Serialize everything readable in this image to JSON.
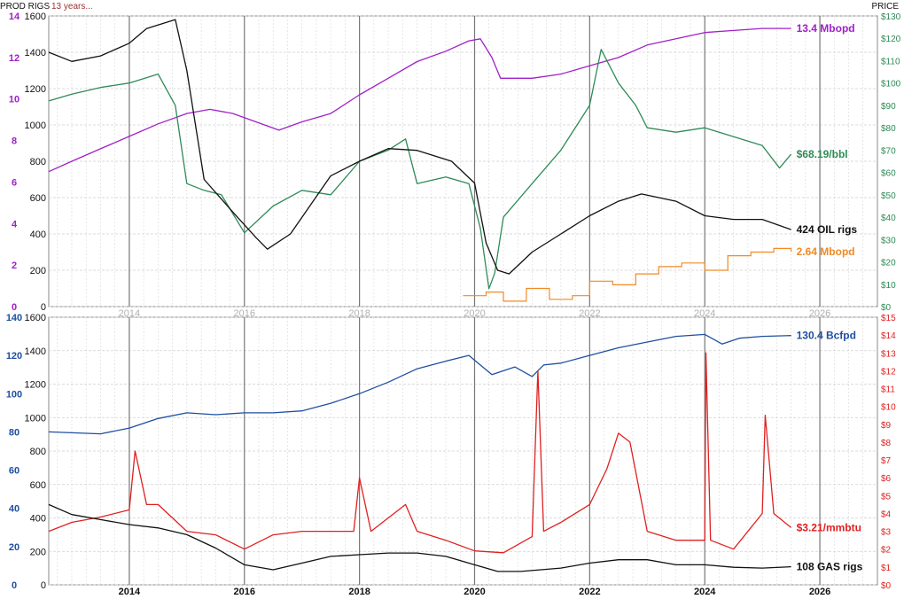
{
  "header": {
    "left_label": "PROD RIGS",
    "note": "13 years...",
    "right_label": "PRICE"
  },
  "chart_data": [
    {
      "type": "line",
      "panel": "oil",
      "x_ticks": [
        "2014",
        "2016",
        "2018",
        "2020",
        "2022",
        "2024",
        "2026"
      ],
      "xlim": [
        2012.6,
        2027.0
      ],
      "y_axes": {
        "rigs": {
          "ticks": [
            "0",
            "200",
            "400",
            "600",
            "800",
            "1000",
            "1200",
            "1400",
            "1600"
          ],
          "ylim": [
            0,
            1600
          ]
        },
        "prod": {
          "ticks": [
            "0",
            "2",
            "4",
            "6",
            "8",
            "10",
            "12",
            "14"
          ],
          "ylim": [
            0,
            14
          ],
          "color": "#a020c8"
        },
        "price": {
          "ticks": [
            "$0",
            "$10",
            "$20",
            "$30",
            "$40",
            "$50",
            "$60",
            "$70",
            "$80",
            "$90",
            "$100",
            "$110",
            "$120",
            "$130"
          ],
          "ylim": [
            0,
            130
          ],
          "color": "#2e8b57"
        }
      },
      "series": [
        {
          "key": "prod",
          "color": "#a020c8",
          "label": "13.4 Mbopd",
          "x": [
            2012.6,
            2013.0,
            2013.5,
            2014.0,
            2014.5,
            2015.0,
            2015.4,
            2015.8,
            2016.2,
            2016.6,
            2017.0,
            2017.5,
            2018.0,
            2018.5,
            2019.0,
            2019.5,
            2019.9,
            2020.1,
            2020.3,
            2020.45,
            2020.7,
            2021.0,
            2021.5,
            2022.0,
            2022.5,
            2023.0,
            2023.5,
            2024.0,
            2024.5,
            2025.0,
            2025.5
          ],
          "y": [
            6.5,
            7.0,
            7.6,
            8.2,
            8.8,
            9.3,
            9.5,
            9.3,
            8.9,
            8.5,
            8.9,
            9.3,
            10.2,
            11.0,
            11.8,
            12.3,
            12.8,
            12.9,
            12.0,
            11.0,
            11.0,
            11.0,
            11.2,
            11.6,
            12.0,
            12.6,
            12.9,
            13.2,
            13.3,
            13.4,
            13.4
          ]
        },
        {
          "key": "price",
          "color": "#2e8b57",
          "label": "$68.19/bbl",
          "x": [
            2012.6,
            2013.0,
            2013.5,
            2014.0,
            2014.5,
            2014.8,
            2015.0,
            2015.3,
            2015.6,
            2016.0,
            2016.5,
            2017.0,
            2017.5,
            2018.0,
            2018.5,
            2018.8,
            2019.0,
            2019.5,
            2019.9,
            2020.1,
            2020.25,
            2020.35,
            2020.5,
            2021.0,
            2021.5,
            2022.0,
            2022.2,
            2022.5,
            2022.8,
            2023.0,
            2023.5,
            2024.0,
            2024.5,
            2025.0,
            2025.3,
            2025.5
          ],
          "y": [
            92,
            95,
            98,
            100,
            104,
            90,
            55,
            52,
            50,
            33,
            45,
            52,
            50,
            65,
            70,
            75,
            55,
            58,
            55,
            35,
            8,
            15,
            40,
            55,
            70,
            90,
            115,
            100,
            90,
            80,
            78,
            80,
            76,
            72,
            62,
            68.19
          ]
        },
        {
          "key": "rigs",
          "color": "#111111",
          "label": "424 OIL rigs",
          "x": [
            2012.6,
            2013.0,
            2013.5,
            2014.0,
            2014.3,
            2014.8,
            2015.0,
            2015.3,
            2015.8,
            2016.2,
            2016.4,
            2016.8,
            2017.5,
            2018.0,
            2018.5,
            2019.0,
            2019.6,
            2020.0,
            2020.2,
            2020.4,
            2020.6,
            2021.0,
            2021.5,
            2022.0,
            2022.5,
            2022.9,
            2023.5,
            2024.0,
            2024.5,
            2025.0,
            2025.5
          ],
          "y": [
            1400,
            1350,
            1380,
            1450,
            1530,
            1580,
            1300,
            700,
            520,
            380,
            316,
            400,
            720,
            800,
            870,
            860,
            800,
            680,
            350,
            200,
            180,
            300,
            400,
            500,
            580,
            620,
            580,
            500,
            480,
            480,
            424
          ]
        },
        {
          "key": "rigs",
          "color": "#f08a24",
          "label": "2.64 Mbopd",
          "x": [
            2019.8,
            2020.2,
            2020.5,
            2020.9,
            2021.3,
            2021.7,
            2022.0,
            2022.4,
            2022.8,
            2023.2,
            2023.6,
            2024.0,
            2024.4,
            2024.8,
            2025.2,
            2025.5
          ],
          "y": [
            60,
            80,
            30,
            100,
            40,
            60,
            140,
            120,
            180,
            220,
            240,
            200,
            280,
            300,
            320,
            302
          ]
        }
      ]
    },
    {
      "type": "line",
      "panel": "gas",
      "x_ticks": [
        "2014",
        "2016",
        "2018",
        "2020",
        "2022",
        "2024",
        "2026"
      ],
      "xlim": [
        2012.6,
        2027.0
      ],
      "y_axes": {
        "rigs": {
          "ticks": [
            "0",
            "200",
            "400",
            "600",
            "800",
            "1000",
            "1200",
            "1400",
            "1600"
          ],
          "ylim": [
            0,
            1600
          ]
        },
        "prod": {
          "ticks": [
            "0",
            "20",
            "40",
            "60",
            "80",
            "100",
            "120",
            "140"
          ],
          "ylim": [
            0,
            140
          ],
          "color": "#1f4fa0"
        },
        "price": {
          "ticks": [
            "$0",
            "$1",
            "$2",
            "$3",
            "$4",
            "$5",
            "$6",
            "$7",
            "$8",
            "$9",
            "$10",
            "$11",
            "$12",
            "$13",
            "$14",
            "$15"
          ],
          "ylim": [
            0,
            15
          ],
          "color": "#e02020"
        }
      },
      "series": [
        {
          "key": "prod",
          "color": "#1f4fa0",
          "label": "130.4 Bcfpd",
          "x": [
            2012.6,
            2013.5,
            2014.0,
            2014.5,
            2015.0,
            2015.5,
            2016.0,
            2016.5,
            2017.0,
            2017.5,
            2018.0,
            2018.5,
            2019.0,
            2019.5,
            2019.9,
            2020.3,
            2020.7,
            2021.0,
            2021.2,
            2021.5,
            2022.0,
            2022.5,
            2023.0,
            2023.5,
            2024.0,
            2024.3,
            2024.6,
            2025.0,
            2025.5
          ],
          "y": [
            80,
            79,
            82,
            87,
            90,
            89,
            90,
            90,
            91,
            95,
            100,
            106,
            113,
            117,
            120,
            110,
            114,
            109,
            115,
            116,
            120,
            124,
            127,
            130,
            131,
            126,
            129,
            130,
            130.4
          ]
        },
        {
          "key": "price",
          "color": "#e02020",
          "label": "$3.21/mmbtu",
          "x": [
            2012.6,
            2013.0,
            2013.5,
            2014.0,
            2014.1,
            2014.3,
            2014.5,
            2015.0,
            2015.5,
            2016.0,
            2016.5,
            2017.0,
            2017.5,
            2017.9,
            2018.0,
            2018.2,
            2018.8,
            2019.0,
            2019.5,
            2020.0,
            2020.5,
            2021.0,
            2021.1,
            2021.2,
            2021.5,
            2022.0,
            2022.3,
            2022.5,
            2022.7,
            2023.0,
            2023.5,
            2024.0,
            2024.02,
            2024.1,
            2024.5,
            2025.0,
            2025.05,
            2025.2,
            2025.5
          ],
          "y": [
            3.0,
            3.5,
            3.8,
            4.2,
            7.5,
            4.5,
            4.5,
            3.0,
            2.8,
            2.0,
            2.8,
            3.0,
            3.0,
            3.0,
            6.0,
            3.0,
            4.5,
            3.0,
            2.5,
            1.9,
            1.8,
            2.7,
            12.0,
            3.0,
            3.5,
            4.5,
            6.5,
            8.5,
            8.0,
            3.0,
            2.5,
            2.5,
            13.0,
            2.5,
            2.0,
            4.0,
            9.5,
            4.0,
            3.21
          ]
        },
        {
          "key": "rigs",
          "color": "#111111",
          "label": "108 GAS rigs",
          "x": [
            2012.6,
            2013.0,
            2013.5,
            2014.0,
            2014.5,
            2015.0,
            2015.5,
            2016.0,
            2016.5,
            2017.0,
            2017.5,
            2018.0,
            2018.5,
            2019.0,
            2019.5,
            2020.0,
            2020.4,
            2020.8,
            2021.5,
            2022.0,
            2022.5,
            2023.0,
            2023.5,
            2024.0,
            2024.5,
            2025.0,
            2025.5
          ],
          "y": [
            480,
            420,
            390,
            360,
            340,
            300,
            220,
            120,
            90,
            130,
            170,
            180,
            190,
            190,
            170,
            120,
            80,
            80,
            100,
            130,
            150,
            150,
            120,
            120,
            105,
            100,
            108
          ]
        }
      ]
    }
  ]
}
